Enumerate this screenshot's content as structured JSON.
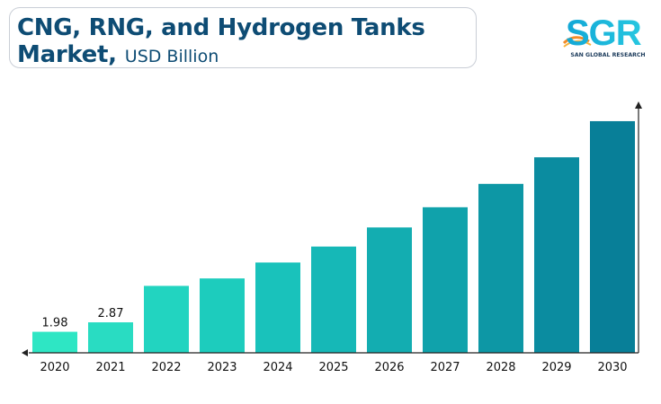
{
  "header": {
    "title_line1": "CNG, RNG, and Hydrogen Tanks",
    "title_line2": "Market,",
    "unit": "USD Billion"
  },
  "logo": {
    "text": "SGR",
    "name": "SAN GLOBAL RESEARCH",
    "icon": "sgr-logo-icon",
    "colors": {
      "primary": "#1ab3d6",
      "accent": "#f28c28"
    }
  },
  "chart_data": {
    "type": "bar",
    "title": "CNG, RNG, and Hydrogen Tanks Market, USD Billion",
    "categories": [
      "2020",
      "2021",
      "2022",
      "2023",
      "2024",
      "2025",
      "2026",
      "2027",
      "2028",
      "2029",
      "2030"
    ],
    "values": [
      1.98,
      2.87,
      6.3,
      7.0,
      8.5,
      10.0,
      11.8,
      13.7,
      15.9,
      18.4,
      21.8
    ],
    "data_labels": [
      "1.98",
      "2.87",
      "",
      "",
      "",
      "",
      "",
      "",
      "",
      "",
      ""
    ],
    "ylim": [
      0,
      24
    ],
    "grid": false,
    "legend": "none",
    "colors": [
      "#2ee6c4",
      "#29dcc2",
      "#22d4c0",
      "#1dccbd",
      "#19c2bb",
      "#16b8b7",
      "#13adb1",
      "#10a2ab",
      "#0d97a5",
      "#0b8ca0",
      "#087f98"
    ]
  }
}
